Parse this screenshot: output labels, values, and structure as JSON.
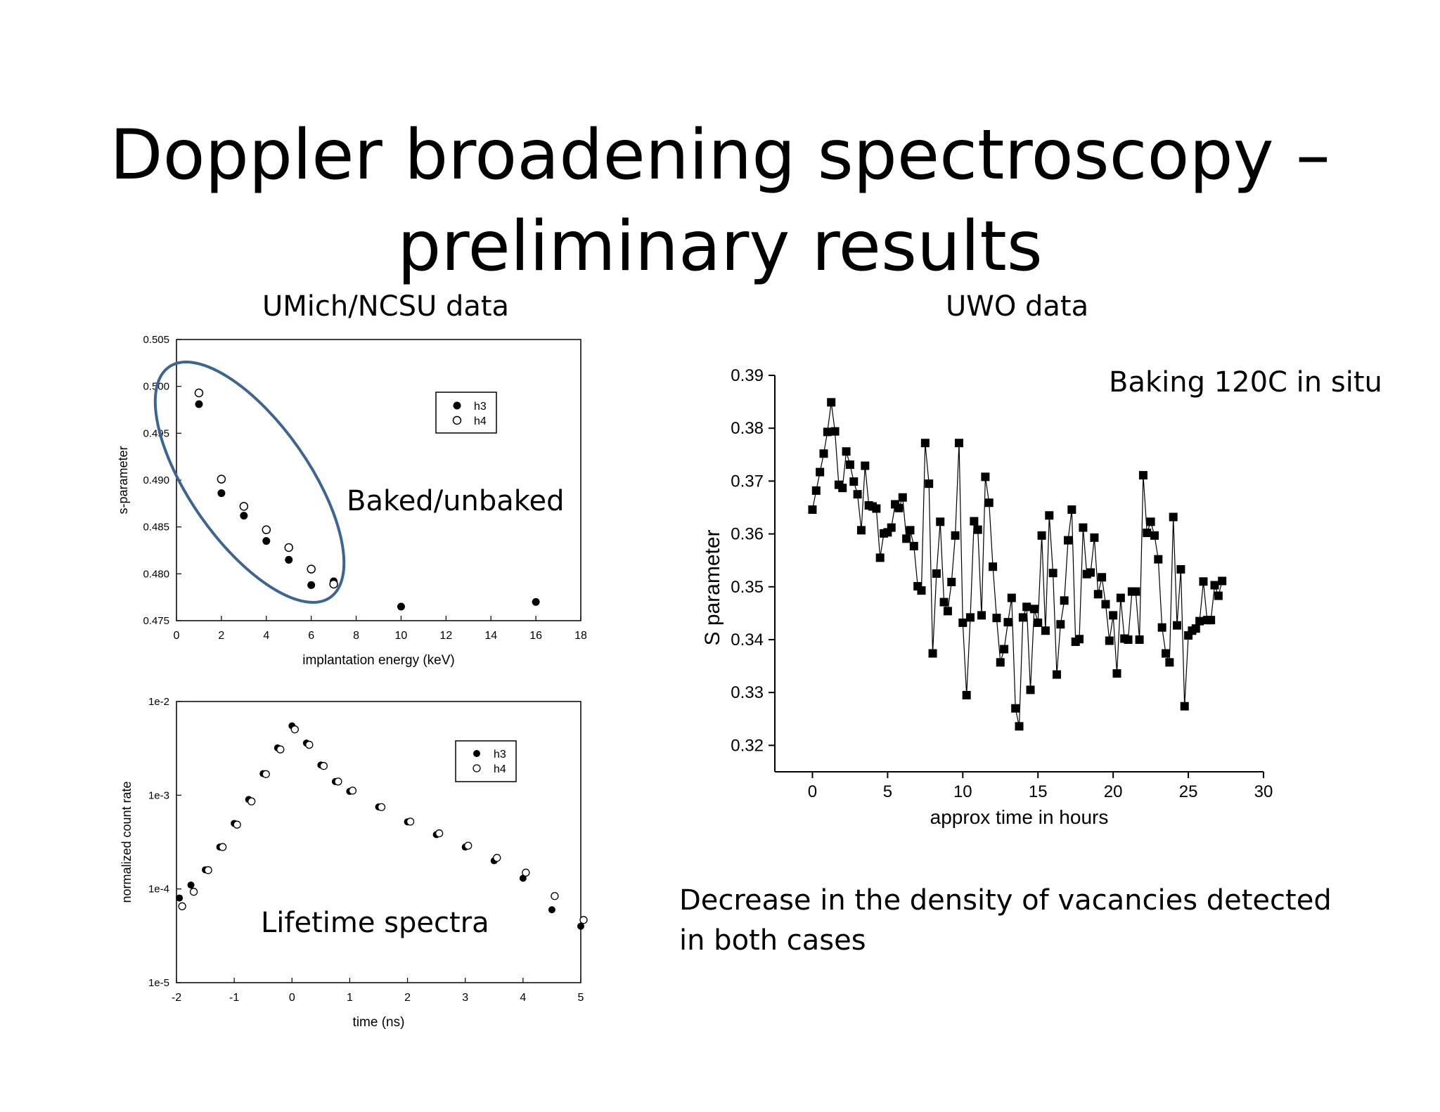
{
  "slide": {
    "title_line1": "Doppler broadening spectroscopy –",
    "title_line2": "preliminary results",
    "umich_heading": "UMich/NCSU data",
    "uwo_heading": "UWO data",
    "baked_label": "Baked/unbaked",
    "lifetime_label": "Lifetime spectra",
    "baking_label": "Baking 120C in situ",
    "conclusion_line1": "Decrease in the density of vacancies detected",
    "conclusion_line2": "in both cases",
    "ellipse_color": "#3d6592"
  },
  "chart_data": [
    {
      "id": "s-parameter-vs-energy",
      "type": "scatter",
      "xlabel": "implantation energy (keV)",
      "ylabel": "s-parameter",
      "xlim": [
        0,
        18
      ],
      "ylim": [
        0.475,
        0.505
      ],
      "xticks": [
        0,
        2,
        4,
        6,
        8,
        10,
        12,
        14,
        16,
        18
      ],
      "yticks": [
        0.475,
        0.48,
        0.485,
        0.49,
        0.495,
        0.5,
        0.505
      ],
      "ytick_labels": [
        "0.475",
        "0.480",
        "0.485",
        "0.490",
        "0.495",
        "0.500",
        "0.505"
      ],
      "legend_position": "top-right",
      "series": [
        {
          "name": "h3",
          "marker": "filled-circle",
          "x": [
            1,
            2,
            3,
            4,
            5,
            6,
            7,
            10,
            16
          ],
          "y": [
            0.4981,
            0.4886,
            0.4862,
            0.4835,
            0.4815,
            0.4788,
            0.4792,
            0.4765,
            0.477
          ]
        },
        {
          "name": "h4",
          "marker": "open-circle",
          "x": [
            1,
            2,
            3,
            4,
            5,
            6,
            7
          ],
          "y": [
            0.4993,
            0.4901,
            0.4872,
            0.4847,
            0.4828,
            0.4805,
            0.4789
          ]
        }
      ]
    },
    {
      "id": "lifetime-spectra",
      "type": "scatter",
      "xlabel": "time (ns)",
      "ylabel": "normalized count rate",
      "xlim": [
        -2,
        5
      ],
      "ylim": [
        1e-05,
        0.01
      ],
      "yscale": "log",
      "xticks": [
        -2,
        -1,
        0,
        1,
        2,
        3,
        4,
        5
      ],
      "yticks": [
        1e-05,
        0.0001,
        0.001,
        0.01
      ],
      "ytick_labels": [
        "1e-5",
        "1e-4",
        "1e-3",
        "1e-2"
      ],
      "legend_position": "top-right",
      "series": [
        {
          "name": "h3",
          "marker": "filled-circle",
          "x": [
            -1.95,
            -1.75,
            -1.5,
            -1.25,
            -1.0,
            -0.75,
            -0.5,
            -0.25,
            0.0,
            0.25,
            0.5,
            0.75,
            1.0,
            1.5,
            2.0,
            2.5,
            3.0,
            3.5,
            4.0,
            4.5,
            5.0
          ],
          "y": [
            8e-05,
            0.00011,
            0.00016,
            0.00028,
            0.0005,
            0.0009,
            0.0017,
            0.0032,
            0.0055,
            0.0036,
            0.0021,
            0.0014,
            0.0011,
            0.00075,
            0.00052,
            0.00038,
            0.00028,
            0.0002,
            0.00013,
            6e-05,
            4e-05
          ]
        },
        {
          "name": "h4",
          "marker": "open-circle",
          "x": [
            -1.95,
            -1.75,
            -1.5,
            -1.25,
            -1.0,
            -0.75,
            -0.5,
            -0.25,
            0.0,
            0.25,
            0.5,
            0.75,
            1.0,
            1.5,
            2.0,
            2.5,
            3.0,
            3.5,
            4.0,
            4.5,
            5.0
          ],
          "y": [
            7e-05,
            0.0001,
            0.00017,
            0.0003,
            0.00052,
            0.00092,
            0.0018,
            0.0033,
            0.0054,
            0.0037,
            0.0022,
            0.0015,
            0.0012,
            0.0008,
            0.00056,
            0.00042,
            0.00031,
            0.00023,
            0.00016,
            9e-05,
            5e-05
          ]
        }
      ]
    },
    {
      "id": "s-parameter-vs-time",
      "type": "line",
      "xlabel": "approx time in hours",
      "ylabel": "S parameter",
      "xlim": [
        -2.5,
        30
      ],
      "ylim": [
        0.315,
        0.39
      ],
      "xticks": [
        0,
        5,
        10,
        15,
        20,
        25,
        30
      ],
      "yticks": [
        0.32,
        0.33,
        0.34,
        0.35,
        0.36,
        0.37,
        0.38,
        0.39
      ],
      "ytick_labels": [
        "0.32",
        "0.33",
        "0.34",
        "0.35",
        "0.36",
        "0.37",
        "0.38",
        "0.39"
      ],
      "series": [
        {
          "marker": "filled-square",
          "x": [
            0,
            0.25,
            0.5,
            0.75,
            1.0,
            1.25,
            1.5,
            1.75,
            2.0,
            2.25,
            2.5,
            2.75,
            3.0,
            3.25,
            3.5,
            3.75,
            4.0,
            4.25,
            4.5,
            4.75,
            5.0,
            5.25,
            5.5,
            5.75,
            6.0,
            6.25,
            6.5,
            6.75,
            7.0,
            7.25,
            7.5,
            7.75,
            8.0,
            8.25,
            8.5,
            8.75,
            9.0,
            9.25,
            9.5,
            9.75,
            10.0,
            10.25,
            10.5,
            10.75,
            11.0,
            11.25,
            11.5,
            11.75,
            12.0,
            12.25,
            12.5,
            12.75,
            13.0,
            13.25,
            13.5,
            13.75,
            14.0,
            14.25,
            14.5,
            14.75,
            15.0,
            15.25,
            15.5,
            15.75,
            16.0,
            16.25,
            16.5,
            16.75,
            17.0,
            17.25,
            17.5,
            17.75,
            18.0,
            18.25,
            18.5,
            18.75,
            19.0,
            19.25,
            19.5,
            19.75,
            20.0,
            20.25,
            20.5,
            20.75,
            21.0,
            21.25,
            21.5,
            21.75,
            22.0,
            22.25,
            22.5,
            22.75,
            23.0,
            23.25,
            23.5,
            23.75,
            24.0,
            24.25,
            24.5,
            24.75,
            25.0,
            25.25,
            25.5,
            25.75,
            26.0,
            26.25,
            26.5,
            26.75,
            27.0,
            27.25
          ],
          "y": [
            0.3646,
            0.3682,
            0.3717,
            0.3752,
            0.3793,
            0.3849,
            0.3794,
            0.3693,
            0.3687,
            0.3756,
            0.3731,
            0.3699,
            0.3675,
            0.3607,
            0.3729,
            0.3654,
            0.3652,
            0.3648,
            0.3555,
            0.3601,
            0.3603,
            0.3612,
            0.3656,
            0.3649,
            0.3669,
            0.3591,
            0.3607,
            0.3577,
            0.3501,
            0.3493,
            0.3772,
            0.3695,
            0.3374,
            0.3525,
            0.3623,
            0.3471,
            0.3454,
            0.3509,
            0.3597,
            0.3772,
            0.3432,
            0.3295,
            0.3442,
            0.3624,
            0.3608,
            0.3446,
            0.3708,
            0.3659,
            0.3538,
            0.3441,
            0.3357,
            0.3382,
            0.3433,
            0.3479,
            0.327,
            0.3236,
            0.3442,
            0.3462,
            0.3305,
            0.3458,
            0.3432,
            0.3597,
            0.3417,
            0.3635,
            0.3526,
            0.3334,
            0.3429,
            0.3474,
            0.3588,
            0.3646,
            0.3396,
            0.3401,
            0.3612,
            0.3524,
            0.3527,
            0.3593,
            0.3486,
            0.3518,
            0.3467,
            0.3398,
            0.3446,
            0.3336,
            0.3479,
            0.3402,
            0.34,
            0.3491,
            0.3491,
            0.34,
            0.3711,
            0.3602,
            0.3623,
            0.3597,
            0.3552,
            0.3423,
            0.3374,
            0.3357,
            0.3632,
            0.3427,
            0.3533,
            0.3274,
            0.3408,
            0.3417,
            0.3421,
            0.3435,
            0.351,
            0.3437,
            0.3437,
            0.3503,
            0.3483,
            0.3511
          ]
        }
      ]
    }
  ]
}
